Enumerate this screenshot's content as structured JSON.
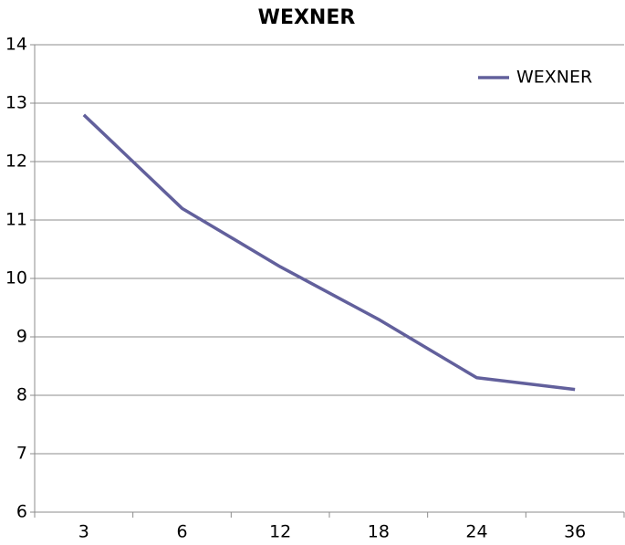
{
  "chart_data": {
    "type": "line",
    "title": "WEXNER",
    "categories": [
      "3",
      "6",
      "12",
      "18",
      "24",
      "36"
    ],
    "series": [
      {
        "name": "WEXNER",
        "color": "#62609c",
        "values": [
          12.8,
          11.2,
          10.2,
          9.3,
          8.3,
          8.1
        ]
      }
    ],
    "ylim": [
      6,
      14
    ],
    "yticks": [
      6,
      7,
      8,
      9,
      10,
      11,
      12,
      13,
      14
    ],
    "grid": true,
    "legend": "top-right"
  }
}
